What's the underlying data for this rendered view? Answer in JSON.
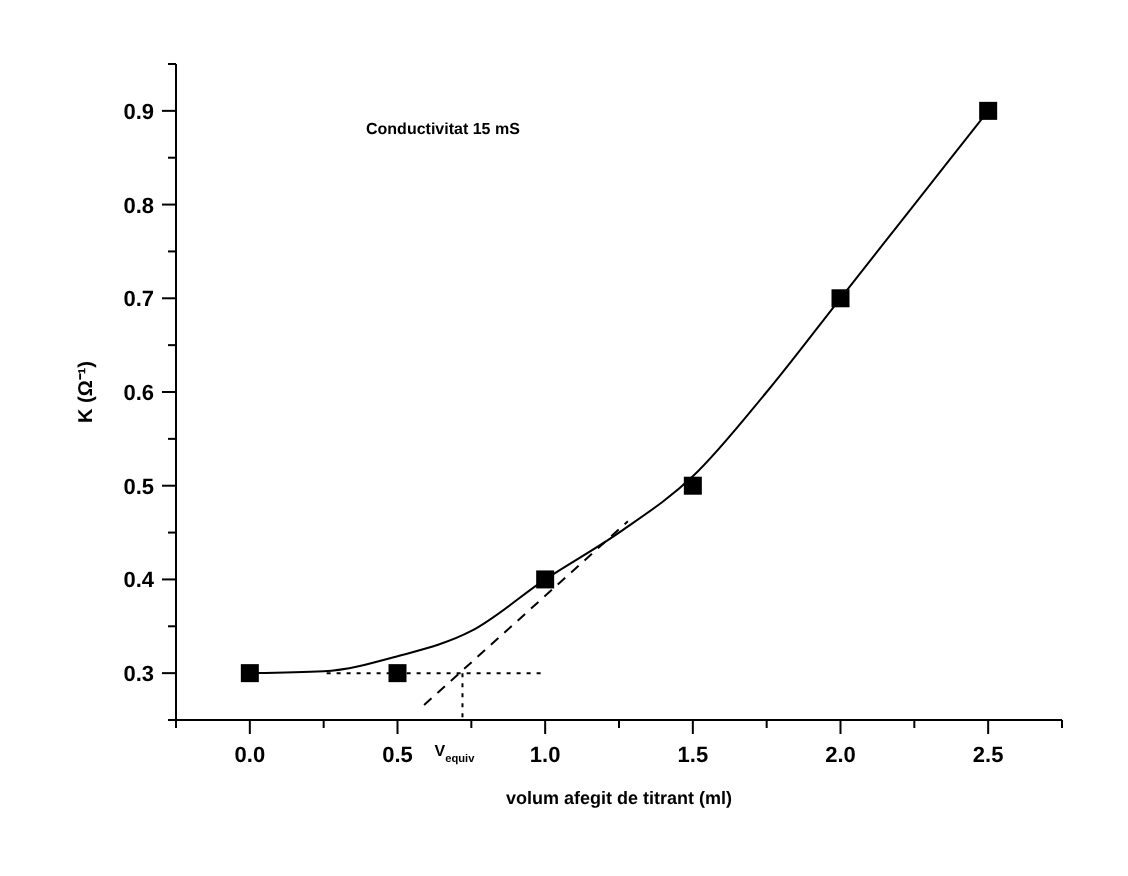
{
  "chart_data": {
    "type": "scatter",
    "xlabel": "volum afegit de titrant (ml)",
    "ylabel": "K (Ω⁻¹)",
    "xlim": [
      -0.25,
      2.75
    ],
    "ylim": [
      0.25,
      0.95
    ],
    "xticks": [
      {
        "value": -0.25,
        "label": null
      },
      {
        "value": 0,
        "label": "0.0"
      },
      {
        "value": 0.25,
        "label": null
      },
      0.5,
      {
        "value": 0.75,
        "label": null
      },
      {
        "value": 1,
        "label": "1.0"
      },
      {
        "value": 1.25,
        "label": null
      },
      1.5,
      {
        "value": 1.75,
        "label": null
      },
      {
        "value": 2,
        "label": "2.0"
      },
      {
        "value": 2.25,
        "label": null
      },
      2.5,
      {
        "value": 2.75,
        "label": null
      }
    ],
    "yticks": [
      {
        "value": 0.25,
        "label": null
      },
      0.3,
      {
        "value": 0.35,
        "label": null
      },
      0.4,
      {
        "value": 0.45,
        "label": null
      },
      0.5,
      {
        "value": 0.55,
        "label": null
      },
      0.6,
      {
        "value": 0.65,
        "label": null
      },
      0.7,
      {
        "value": 0.75,
        "label": null
      },
      0.8,
      {
        "value": 0.85,
        "label": null
      },
      0.9,
      {
        "value": 0.95,
        "label": null
      }
    ],
    "grid": false,
    "series": [
      {
        "type": "line",
        "color": "#000000",
        "marker": "none",
        "line_style": "solid",
        "x": [
          0,
          0.25,
          0.5,
          0.75,
          1,
          1.25,
          1.5,
          1.75,
          2,
          2.25,
          2.5
        ],
        "values": [
          0.3,
          0.302,
          0.318,
          0.345,
          0.4,
          0.45,
          0.51,
          0.6,
          0.7,
          0.8,
          0.9
        ]
      },
      {
        "type": "line",
        "color": "#000000",
        "marker": "none",
        "line_style": "dashed",
        "x": [
          0.59,
          1.28
        ],
        "values": [
          0.266,
          0.462
        ]
      },
      {
        "type": "line",
        "color": "#000000",
        "marker": "none",
        "line_style": "dotted",
        "x": [
          0.26,
          1
        ],
        "values": [
          0.3,
          0.3
        ]
      },
      {
        "type": "line",
        "color": "#000000",
        "marker": "none",
        "line_style": "dotted",
        "x": [
          0.72,
          0.72
        ],
        "values": [
          0.3,
          0.25
        ]
      },
      {
        "color": "#000000",
        "marker": "square",
        "x": [
          0,
          0.5,
          1,
          1.5,
          2,
          2.5
        ],
        "values": [
          0.3,
          0.3,
          0.4,
          0.5,
          0.7,
          0.9
        ]
      }
    ],
    "annotations": [
      "Conductivitat 15 mS",
      {
        "text": "V$_{equiv}$",
        "x": 0.72,
        "y": 0.25
      }
    ]
  }
}
